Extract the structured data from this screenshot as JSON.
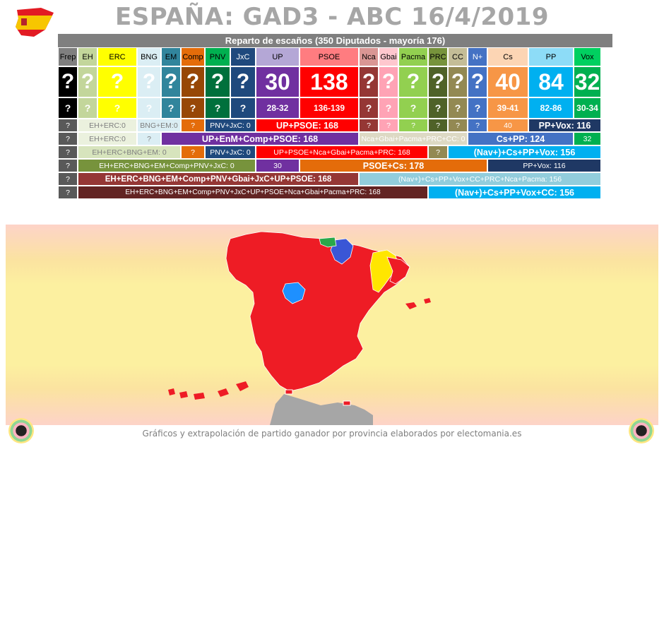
{
  "header": {
    "title": "ESPAÑA: GAD3 - ABC 16/4/2019",
    "subtitle": "Reparto de escaños (350 Diputados - mayoría 176)"
  },
  "parties": [
    {
      "name": "Frep",
      "seats": "?",
      "range": "?",
      "bg": "#000000",
      "hbg": "#7f7f7f",
      "hfg": "#000000",
      "fg": "#ffffff"
    },
    {
      "name": "EH",
      "seats": "?",
      "range": "?",
      "bg": "#c3d69b",
      "hbg": "#c3d69b",
      "hfg": "#000000",
      "fg": "#ffffff"
    },
    {
      "name": "ERC",
      "seats": "?",
      "range": "?",
      "bg": "#ffff00",
      "hbg": "#ffff00",
      "hfg": "#000000",
      "fg": "#ffffff"
    },
    {
      "name": "BNG",
      "seats": "?",
      "range": "?",
      "bg": "#dbeef4",
      "hbg": "#dbeef4",
      "hfg": "#000000",
      "fg": "#ffffff"
    },
    {
      "name": "EM",
      "seats": "?",
      "range": "?",
      "bg": "#31859c",
      "hbg": "#31859c",
      "hfg": "#000000",
      "fg": "#ffffff"
    },
    {
      "name": "Comp",
      "seats": "?",
      "range": "?",
      "bg": "#974706",
      "hbg": "#e46c0a",
      "hfg": "#000000",
      "fg": "#ffffff"
    },
    {
      "name": "PNV",
      "seats": "?",
      "range": "?",
      "bg": "#00703c",
      "hbg": "#00b050",
      "hfg": "#000000",
      "fg": "#ffffff"
    },
    {
      "name": "JxC",
      "seats": "?",
      "range": "?",
      "bg": "#1f497d",
      "hbg": "#1f497d",
      "hfg": "#ffffff",
      "fg": "#ffffff"
    },
    {
      "name": "UP",
      "seats": "30",
      "range": "28-32",
      "bg": "#7030a0",
      "hbg": "#b4a7d6",
      "hfg": "#000000",
      "fg": "#ffffff"
    },
    {
      "name": "PSOE",
      "seats": "138",
      "range": "136-139",
      "bg": "#ff0000",
      "hbg": "#ff7c80",
      "hfg": "#000000",
      "fg": "#ffffff"
    },
    {
      "name": "Nca",
      "seats": "?",
      "range": "?",
      "bg": "#953735",
      "hbg": "#d99694",
      "hfg": "#000000",
      "fg": "#ffffff"
    },
    {
      "name": "Gbai",
      "seats": "?",
      "range": "?",
      "bg": "#ffa3b5",
      "hbg": "#ffc7ce",
      "hfg": "#000000",
      "fg": "#ffffff"
    },
    {
      "name": "Pacma",
      "seats": "?",
      "range": "?",
      "bg": "#92d050",
      "hbg": "#92d050",
      "hfg": "#000000",
      "fg": "#ffffff"
    },
    {
      "name": "PRC",
      "seats": "?",
      "range": "?",
      "bg": "#4f6228",
      "hbg": "#77933c",
      "hfg": "#000000",
      "fg": "#ffffff"
    },
    {
      "name": "CC",
      "seats": "?",
      "range": "?",
      "bg": "#938953",
      "hbg": "#c4bd97",
      "hfg": "#000000",
      "fg": "#ffffff"
    },
    {
      "name": "N+",
      "seats": "?",
      "range": "?",
      "bg": "#4472c4",
      "hbg": "#4472c4",
      "hfg": "#ffffff",
      "fg": "#ffffff"
    },
    {
      "name": "Cs",
      "seats": "40",
      "range": "39-41",
      "bg": "#f79646",
      "hbg": "#fcd5b4",
      "hfg": "#000000",
      "fg": "#ffffff"
    },
    {
      "name": "PP",
      "seats": "84",
      "range": "82-86",
      "bg": "#00b0f0",
      "hbg": "#8ddcf7",
      "hfg": "#000000",
      "fg": "#ffffff"
    },
    {
      "name": "Vox",
      "seats": "32",
      "range": "30-34",
      "bg": "#00b050",
      "hbg": "#00d060",
      "hfg": "#000000",
      "fg": "#ffffff"
    }
  ],
  "pact_rows": [
    [
      {
        "text": "?",
        "span": [
          0,
          1
        ],
        "bg": "#595959",
        "fg": "#ffffff"
      },
      {
        "text": "EH+ERC:0",
        "span": [
          1,
          3
        ],
        "bg": "#ebf1de",
        "fg": "#7f7f7f"
      },
      {
        "text": "BNG+EM:0",
        "span": [
          3,
          5
        ],
        "bg": "#dbeef4",
        "fg": "#7f7f7f"
      },
      {
        "text": "?",
        "span": [
          5,
          6
        ],
        "bg": "#e46c0a",
        "fg": "#ffffff"
      },
      {
        "text": "PNV+JxC: 0",
        "span": [
          6,
          8
        ],
        "bg": "#1f497d",
        "fg": "#ffffff"
      },
      {
        "text": "UP+PSOE: 168",
        "span": [
          8,
          10
        ],
        "bg": "#ff0000",
        "fg": "#ffffff",
        "bold": true
      },
      {
        "text": "?",
        "span": [
          10,
          11
        ],
        "bg": "#953735",
        "fg": "#ffffff"
      },
      {
        "text": "?",
        "span": [
          11,
          12
        ],
        "bg": "#ffa3b5",
        "fg": "#ffffff"
      },
      {
        "text": "?",
        "span": [
          12,
          13
        ],
        "bg": "#92d050",
        "fg": "#ffffff"
      },
      {
        "text": "?",
        "span": [
          13,
          14
        ],
        "bg": "#4f6228",
        "fg": "#ffffff"
      },
      {
        "text": "?",
        "span": [
          14,
          15
        ],
        "bg": "#938953",
        "fg": "#ffffff"
      },
      {
        "text": "?",
        "span": [
          15,
          16
        ],
        "bg": "#4472c4",
        "fg": "#ffffff"
      },
      {
        "text": "40",
        "span": [
          16,
          17
        ],
        "bg": "#f79646",
        "fg": "#ffffff"
      },
      {
        "text": "PP+Vox: 116",
        "span": [
          17,
          19
        ],
        "bg": "#1f3864",
        "fg": "#ffffff",
        "bold": true
      }
    ],
    [
      {
        "text": "?",
        "span": [
          0,
          1
        ],
        "bg": "#595959",
        "fg": "#ffffff"
      },
      {
        "text": "EH+ERC:0",
        "span": [
          1,
          3
        ],
        "bg": "#ebf1de",
        "fg": "#7f7f7f"
      },
      {
        "text": "?",
        "span": [
          3,
          4
        ],
        "bg": "#dbeef4",
        "fg": "#7f7f7f"
      },
      {
        "text": "UP+EnM+Comp+PSOE: 168",
        "span": [
          4,
          10
        ],
        "bg": "#7030a0",
        "fg": "#ffffff",
        "bold": true
      },
      {
        "text": "Nca+Gbai+Pacma+PRC+CC: 0",
        "span": [
          10,
          15
        ],
        "bg": "#ddd9c4",
        "fg": "#ffffff"
      },
      {
        "text": "Cs+PP: 124",
        "span": [
          15,
          18
        ],
        "bg": "#4472c4",
        "fg": "#ffffff",
        "bold": true
      },
      {
        "text": "32",
        "span": [
          18,
          19
        ],
        "bg": "#00b050",
        "fg": "#ffffff"
      }
    ],
    [
      {
        "text": "?",
        "span": [
          0,
          1
        ],
        "bg": "#595959",
        "fg": "#ffffff"
      },
      {
        "text": "EH+ERC+BNG+EM: 0",
        "span": [
          1,
          5
        ],
        "bg": "#d7e4bd",
        "fg": "#7f7f7f"
      },
      {
        "text": "?",
        "span": [
          5,
          6
        ],
        "bg": "#e46c0a",
        "fg": "#ffffff"
      },
      {
        "text": "PNV+JxC: 0",
        "span": [
          6,
          8
        ],
        "bg": "#1f497d",
        "fg": "#ffffff"
      },
      {
        "text": "UP+PSOE+Nca+Gbai+Pacma+PRC: 168",
        "span": [
          8,
          13
        ],
        "bg": "#ff0000",
        "fg": "#ffffff"
      },
      {
        "text": "?",
        "span": [
          13,
          14
        ],
        "bg": "#938953",
        "fg": "#ffffff"
      },
      {
        "text": "(Nav+)+Cs+PP+Vox: 156",
        "span": [
          14,
          19
        ],
        "bg": "#00b0f0",
        "fg": "#ffffff",
        "bold": true
      }
    ],
    [
      {
        "text": "?",
        "span": [
          0,
          1
        ],
        "bg": "#595959",
        "fg": "#ffffff"
      },
      {
        "text": "EH+ERC+BNG+EM+Comp+PNV+JxC: 0",
        "span": [
          1,
          8
        ],
        "bg": "#77933c",
        "fg": "#ffffff"
      },
      {
        "text": "30",
        "span": [
          8,
          9
        ],
        "bg": "#7030a0",
        "fg": "#ffffff"
      },
      {
        "text": "PSOE+Cs: 178",
        "span": [
          9,
          16
        ],
        "bg": "#e46c0a",
        "fg": "#ffffff",
        "bold": true
      },
      {
        "text": "PP+Vox: 116",
        "span": [
          16,
          19
        ],
        "bg": "#1f3864",
        "fg": "#ffffff"
      }
    ],
    [
      {
        "text": "?",
        "span": [
          0,
          1
        ],
        "bg": "#595959",
        "fg": "#ffffff"
      },
      {
        "text": "EH+ERC+BNG+EM+Comp+PNV+Gbai+JxC+UP+PSOE: 168",
        "span": [
          1,
          10
        ],
        "bg": "#953735",
        "fg": "#ffffff",
        "bold": true
      },
      {
        "text": "(Nav+)+Cs+PP+Vox+CC+PRC+Nca+Pacma: 156",
        "span": [
          10,
          19
        ],
        "bg": "#92cddc",
        "fg": "#ffffff"
      }
    ],
    [
      {
        "text": "?",
        "span": [
          0,
          1
        ],
        "bg": "#595959",
        "fg": "#ffffff"
      },
      {
        "text": "EH+ERC+BNG+EM+Comp+PNV+JxC+UP+PSOE+Nca+Gbai+Pacma+PRC: 168",
        "span": [
          1,
          13
        ],
        "bg": "#632423",
        "fg": "#ffffff"
      },
      {
        "text": "(Nav+)+Cs+PP+Vox+CC: 156",
        "span": [
          13,
          19
        ],
        "bg": "#00b0f0",
        "fg": "#ffffff",
        "bold": true
      }
    ]
  ],
  "map": {
    "watermark": "electomania.es",
    "colors": {
      "psoe": "#ee1c25",
      "pp": "#1e90ff",
      "erc": "#ffe600",
      "pnv": "#2aa84a",
      "navarra": "#3a56d6",
      "spain_outline": "#a6a6a6"
    }
  },
  "footer": {
    "text": "Gráficos y extrapolación de partido ganador por provincia elaborados por electomania.es"
  }
}
